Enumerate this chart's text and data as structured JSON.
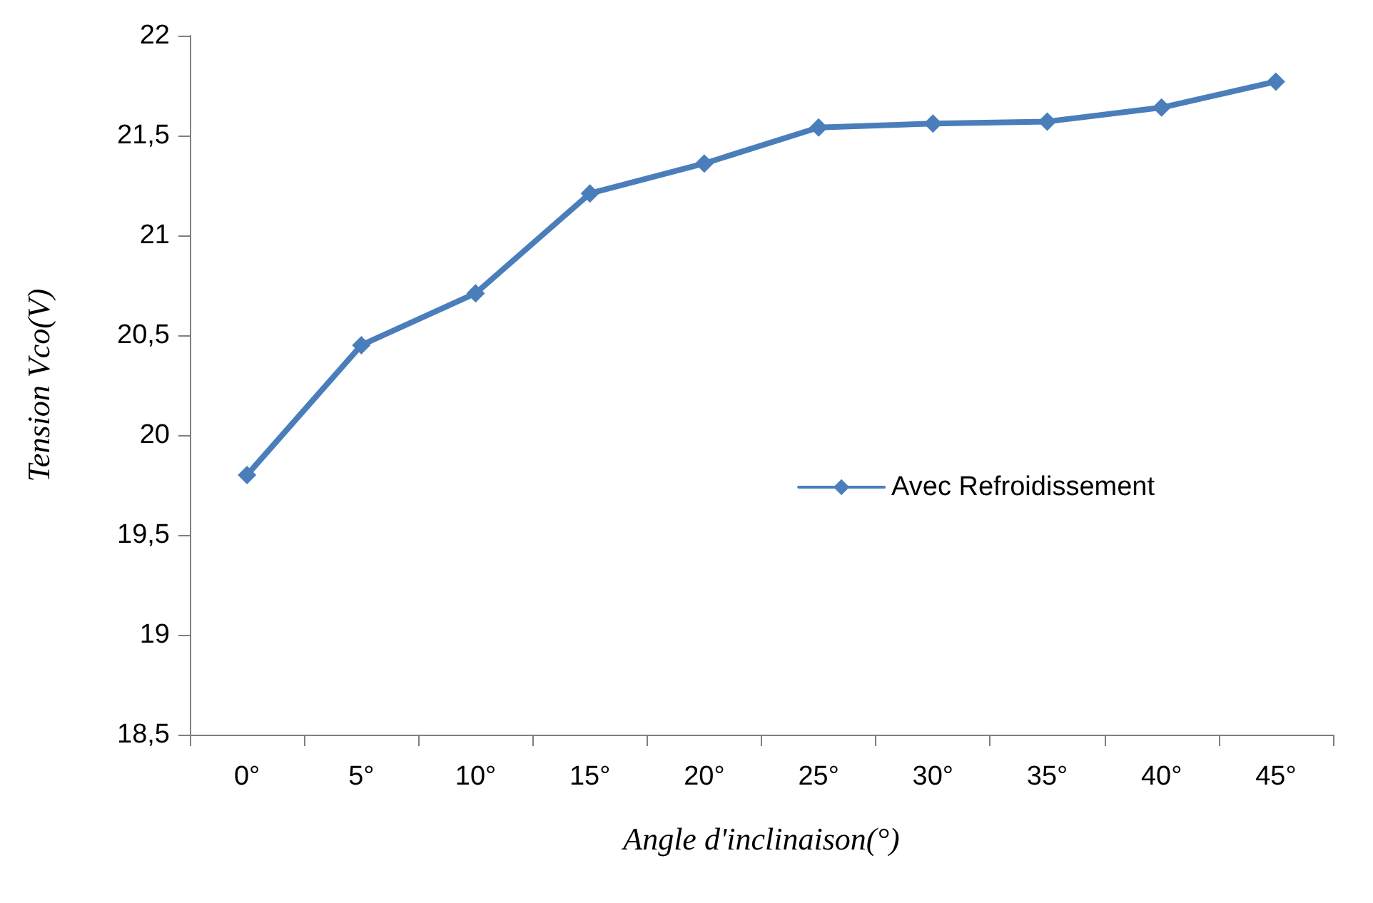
{
  "chart_data": {
    "type": "line",
    "xlabel": "Angle d'inclinaison(°)",
    "ylabel": "Tension Vco(V)",
    "categories": [
      "0°",
      "5°",
      "10°",
      "15°",
      "20°",
      "25°",
      "30°",
      "35°",
      "40°",
      "45°"
    ],
    "series": [
      {
        "name": "Avec Refroidissement",
        "color": "#4a7ebb",
        "values": [
          19.8,
          20.45,
          20.71,
          21.21,
          21.36,
          21.54,
          21.56,
          21.57,
          21.64,
          21.77
        ]
      }
    ],
    "ylim": [
      18.5,
      22
    ],
    "yticks": [
      {
        "value": 18.5,
        "label": "18,5"
      },
      19,
      {
        "value": 19.5,
        "label": "19,5"
      },
      20,
      {
        "value": 20.5,
        "label": "20,5"
      },
      21,
      {
        "value": 21.5,
        "label": "21,5"
      },
      22
    ],
    "grid": false,
    "legend": "right",
    "marker": "diamond",
    "line_style": "solid"
  }
}
